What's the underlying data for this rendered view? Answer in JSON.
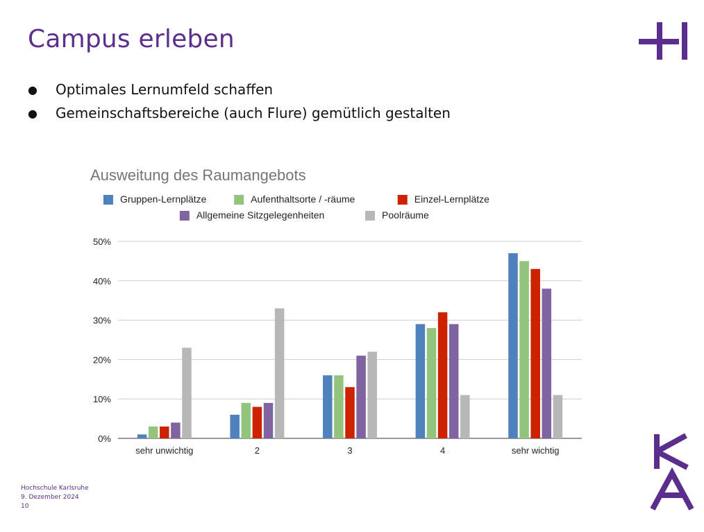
{
  "slide": {
    "title": "Campus erleben",
    "bullets": [
      "Optimales Lernumfeld schaffen",
      "Gemeinschaftsbereiche (auch Flure)  gemütlich gestalten"
    ],
    "bullet_symbol": "●",
    "accent_color": "#5b2d8c"
  },
  "footer": {
    "institution": "Hochschule Karlsruhe",
    "date": "9. Dezember  2024",
    "page": "10"
  },
  "chart_data": {
    "type": "bar",
    "title": "Ausweitung des Raumangebots",
    "xlabel": "",
    "ylabel": "",
    "categories": [
      "sehr unwichtig",
      "2",
      "3",
      "4",
      "sehr wichtig"
    ],
    "ylim": [
      0,
      50
    ],
    "yticks": [
      0,
      10,
      20,
      30,
      40,
      50
    ],
    "ytick_labels": [
      "0%",
      "10%",
      "20%",
      "30%",
      "40%",
      "50%"
    ],
    "grid": true,
    "legend_position": "top",
    "series": [
      {
        "name": "Gruppen-Lernplätze",
        "color": "#4f81bd",
        "values": [
          1,
          6,
          16,
          29,
          47
        ]
      },
      {
        "name": "Aufenthaltsorte / -räume",
        "color": "#93c47d",
        "values": [
          3,
          9,
          16,
          28,
          45
        ]
      },
      {
        "name": "Einzel-Lernplätze",
        "color": "#cc2200",
        "values": [
          3,
          8,
          13,
          32,
          43
        ]
      },
      {
        "name": "Allgemeine Sitzgelegenheiten",
        "color": "#8064a2",
        "values": [
          4,
          9,
          21,
          29,
          38
        ]
      },
      {
        "name": "Poolräume",
        "color": "#b7b7b7",
        "values": [
          23,
          33,
          22,
          11,
          11
        ]
      }
    ]
  }
}
